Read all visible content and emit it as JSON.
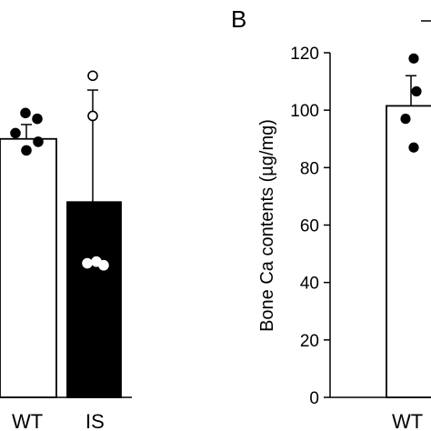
{
  "chart_data": [
    {
      "type": "bar",
      "panel_label": "",
      "categories": [
        "WT",
        "IS"
      ],
      "bar_colors": [
        "#ffffff",
        "#000000"
      ],
      "values": [
        90,
        68
      ],
      "errors": [
        5,
        39
      ],
      "points": [
        [
          99,
          97,
          92,
          89,
          86
        ],
        [
          112,
          98,
          47,
          46,
          46
        ]
      ],
      "point_styles": [
        "filled",
        "open"
      ],
      "ylim": [
        0,
        120
      ],
      "ylabel": ""
    },
    {
      "type": "bar",
      "panel_label": "B",
      "categories": [
        "WT"
      ],
      "bar_colors": [
        "#ffffff"
      ],
      "values": [
        101.5
      ],
      "errors": [
        10.5
      ],
      "points": [
        [
          118,
          104,
          97,
          87
        ]
      ],
      "point_styles": [
        "filled"
      ],
      "yticks": [
        0,
        20,
        40,
        60,
        80,
        100,
        120
      ],
      "ylim": [
        0,
        120
      ],
      "ylabel": "Bone Ca contents  (µg/mg)"
    }
  ]
}
